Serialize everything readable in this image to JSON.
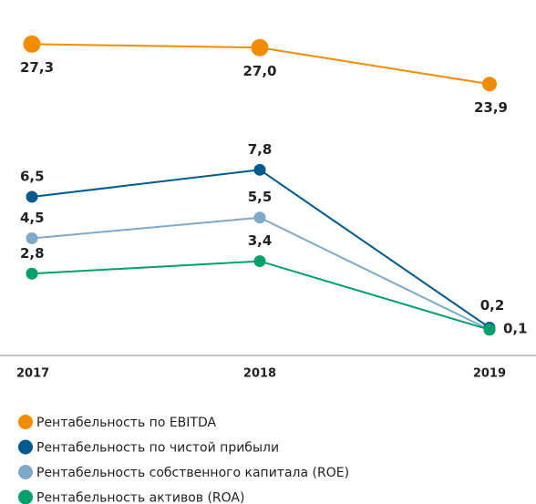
{
  "chart_data": {
    "type": "line",
    "categories": [
      "2017",
      "2018",
      "2019"
    ],
    "ylim": [
      -0.7,
      15.1
    ],
    "y2lim": [
      1.6,
      29.5
    ],
    "series": [
      {
        "name": "Рентабельность по EBITDA",
        "color": "#f28c00",
        "axis": "y2",
        "values": [
          27.3,
          27.0,
          23.9
        ],
        "value_labels": [
          "27,3",
          "27,0",
          "23,9"
        ]
      },
      {
        "name": "Рентабельность по чистой прибыли",
        "color": "#005a8c",
        "values": [
          6.5,
          7.8,
          0.2
        ],
        "value_labels": [
          "6,5",
          "7,8",
          "0,2"
        ]
      },
      {
        "name": "Рентабельность собственного капитала (ROE)",
        "color": "#7fa9c9",
        "values": [
          4.5,
          5.5,
          0.1
        ],
        "value_labels": [
          "4,5",
          "5,5",
          "0,1"
        ]
      },
      {
        "name": "Рентабельность активов (ROA)",
        "color": "#00a06a",
        "values": [
          2.8,
          3.4,
          0.1
        ],
        "value_labels": [
          "2,8",
          "3,4",
          null
        ]
      }
    ]
  }
}
